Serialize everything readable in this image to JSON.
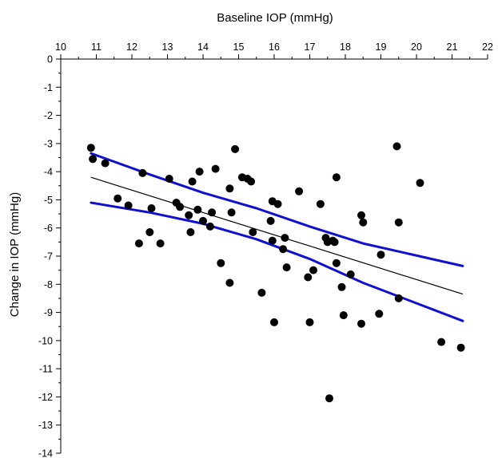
{
  "chart_data": {
    "type": "scatter",
    "title": "",
    "xlabel": "Baseline IOP (mmHg)",
    "ylabel": "Change in IOP (mmHg)",
    "x_axis_position": "top",
    "xlim": [
      10,
      22
    ],
    "ylim": [
      -14,
      0
    ],
    "x_ticks": [
      10,
      11,
      12,
      13,
      14,
      15,
      16,
      17,
      18,
      19,
      20,
      21,
      22
    ],
    "y_ticks": [
      0,
      -1,
      -2,
      -3,
      -4,
      -5,
      -6,
      -7,
      -8,
      -9,
      -10,
      -11,
      -12,
      -13,
      -14
    ],
    "grid": false,
    "legend": "none",
    "colors": {
      "points": "#000000",
      "regression": "#000000",
      "confidence": "#1010d0"
    },
    "points": [
      [
        10.85,
        -3.15
      ],
      [
        10.9,
        -3.55
      ],
      [
        11.25,
        -3.7
      ],
      [
        11.6,
        -4.95
      ],
      [
        11.9,
        -5.2
      ],
      [
        12.2,
        -6.55
      ],
      [
        12.3,
        -4.05
      ],
      [
        12.5,
        -6.15
      ],
      [
        12.55,
        -5.3
      ],
      [
        12.8,
        -6.55
      ],
      [
        13.05,
        -4.25
      ],
      [
        13.25,
        -5.1
      ],
      [
        13.35,
        -5.25
      ],
      [
        13.6,
        -5.55
      ],
      [
        13.65,
        -6.15
      ],
      [
        13.7,
        -4.35
      ],
      [
        13.85,
        -5.35
      ],
      [
        13.9,
        -4.0
      ],
      [
        14.0,
        -5.75
      ],
      [
        14.2,
        -5.95
      ],
      [
        14.25,
        -5.45
      ],
      [
        14.35,
        -3.9
      ],
      [
        14.5,
        -7.25
      ],
      [
        14.75,
        -4.6
      ],
      [
        14.75,
        -7.95
      ],
      [
        14.8,
        -5.45
      ],
      [
        14.9,
        -3.2
      ],
      [
        15.1,
        -4.2
      ],
      [
        15.25,
        -4.25
      ],
      [
        15.35,
        -4.35
      ],
      [
        15.4,
        -6.15
      ],
      [
        15.65,
        -8.3
      ],
      [
        15.9,
        -5.75
      ],
      [
        15.95,
        -6.45
      ],
      [
        15.95,
        -5.05
      ],
      [
        16.0,
        -9.35
      ],
      [
        16.1,
        -5.15
      ],
      [
        16.25,
        -6.75
      ],
      [
        16.3,
        -6.35
      ],
      [
        16.35,
        -7.4
      ],
      [
        16.7,
        -4.7
      ],
      [
        16.95,
        -7.75
      ],
      [
        17.0,
        -9.35
      ],
      [
        17.1,
        -7.5
      ],
      [
        17.3,
        -5.15
      ],
      [
        17.45,
        -6.35
      ],
      [
        17.5,
        -6.5
      ],
      [
        17.55,
        -12.05
      ],
      [
        17.65,
        -6.45
      ],
      [
        17.7,
        -6.5
      ],
      [
        17.75,
        -7.25
      ],
      [
        17.75,
        -4.2
      ],
      [
        17.9,
        -8.1
      ],
      [
        17.95,
        -9.1
      ],
      [
        18.15,
        -7.65
      ],
      [
        18.45,
        -9.4
      ],
      [
        18.45,
        -5.55
      ],
      [
        18.5,
        -5.8
      ],
      [
        18.95,
        -9.05
      ],
      [
        19.0,
        -6.95
      ],
      [
        19.45,
        -3.1
      ],
      [
        19.5,
        -8.5
      ],
      [
        19.5,
        -5.8
      ],
      [
        20.1,
        -4.4
      ],
      [
        20.7,
        -10.05
      ],
      [
        21.25,
        -10.25
      ]
    ],
    "regression_line": [
      [
        10.85,
        -4.2
      ],
      [
        21.3,
        -8.35
      ]
    ],
    "confidence_upper": [
      [
        10.85,
        -3.35
      ],
      [
        12.5,
        -4.1
      ],
      [
        14.0,
        -4.75
      ],
      [
        15.5,
        -5.3
      ],
      [
        17.0,
        -5.95
      ],
      [
        18.5,
        -6.55
      ],
      [
        21.3,
        -7.35
      ]
    ],
    "confidence_lower": [
      [
        10.85,
        -5.1
      ],
      [
        12.5,
        -5.45
      ],
      [
        14.0,
        -5.85
      ],
      [
        15.5,
        -6.4
      ],
      [
        17.0,
        -7.1
      ],
      [
        18.5,
        -7.95
      ],
      [
        21.3,
        -9.3
      ]
    ]
  }
}
